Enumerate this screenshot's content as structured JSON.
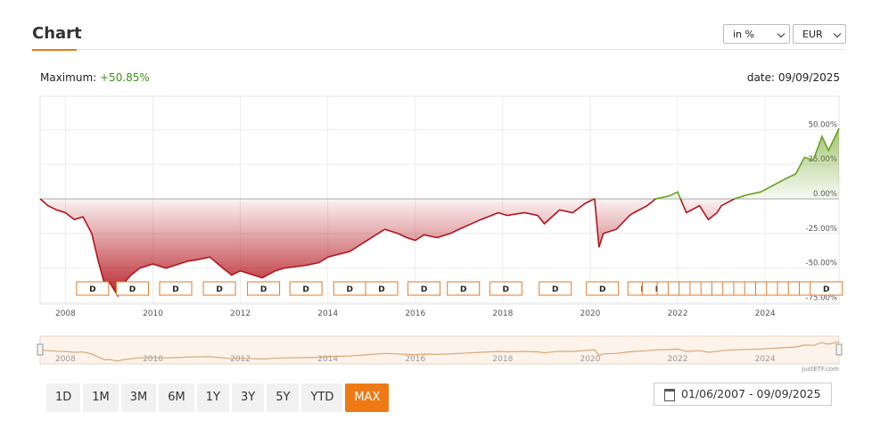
{
  "header": {
    "title": "Chart"
  },
  "controls": {
    "unit": "in %",
    "currency": "EUR"
  },
  "summary": {
    "maximum_label": "Maximum:",
    "maximum_value": "+50.85%",
    "date": "date: 09/09/2025"
  },
  "chart_data": {
    "type": "line",
    "x": [
      2007.42,
      2007.6,
      2007.8,
      2008.0,
      2008.2,
      2008.4,
      2008.6,
      2008.75,
      2008.9,
      2009.0,
      2009.2,
      2009.3,
      2009.5,
      2009.7,
      2010.0,
      2010.3,
      2010.5,
      2010.8,
      2011.0,
      2011.3,
      2011.6,
      2011.8,
      2012.0,
      2012.3,
      2012.5,
      2012.8,
      2013.0,
      2013.5,
      2013.8,
      2014.0,
      2014.5,
      2014.8,
      2015.0,
      2015.3,
      2015.6,
      2015.8,
      2016.0,
      2016.2,
      2016.5,
      2016.8,
      2017.0,
      2017.5,
      2017.9,
      2018.1,
      2018.5,
      2018.8,
      2018.95,
      2019.3,
      2019.6,
      2019.9,
      2020.1,
      2020.2,
      2020.3,
      2020.6,
      2020.9,
      2021.0,
      2021.3,
      2021.5,
      2021.8,
      2022.0,
      2022.2,
      2022.5,
      2022.7,
      2022.9,
      2023.0,
      2023.3,
      2023.6,
      2023.9,
      2024.2,
      2024.5,
      2024.7,
      2024.9,
      2025.1,
      2025.3,
      2025.45,
      2025.69
    ],
    "values": [
      0,
      -5,
      -8,
      -10,
      -15,
      -13,
      -25,
      -45,
      -62,
      -60,
      -70,
      -62,
      -55,
      -50,
      -47,
      -50,
      -48,
      -45,
      -44,
      -42,
      -50,
      -55,
      -52,
      -55,
      -57,
      -52,
      -50,
      -48,
      -46,
      -42,
      -38,
      -32,
      -28,
      -22,
      -25,
      -28,
      -30,
      -26,
      -28,
      -25,
      -22,
      -15,
      -10,
      -12,
      -10,
      -12,
      -18,
      -8,
      -10,
      -3,
      0,
      -35,
      -25,
      -22,
      -12,
      -10,
      -5,
      0,
      2,
      5,
      -10,
      -5,
      -15,
      -10,
      -5,
      0,
      3,
      5,
      10,
      15,
      18,
      30,
      28,
      45,
      35,
      50.85
    ],
    "color_up": "#6aa121",
    "color_down": "#b3141c",
    "xlim": [
      2007.42,
      2025.69
    ],
    "xticks": [
      2008,
      2010,
      2012,
      2014,
      2016,
      2018,
      2020,
      2022,
      2024
    ],
    "ylim": [
      -76,
      74
    ],
    "yticks": [
      {
        "value": 50,
        "label": "50.00%"
      },
      {
        "value": 25,
        "label": "25.00%"
      },
      {
        "value": 0,
        "label": "0.00%"
      },
      {
        "value": -25,
        "label": "-25.00%"
      },
      {
        "value": -50,
        "label": "-50.00%"
      },
      {
        "value": -75,
        "label": "-75.00%"
      }
    ],
    "grid": true,
    "dividend_label": "D",
    "dividend_x": [
      2008.62,
      2009.53,
      2010.52,
      2011.52,
      2012.53,
      2013.5,
      2014.5,
      2015.23,
      2016.2,
      2017.1,
      2018.07,
      2019.2,
      2020.28,
      2021.23,
      2021.56,
      2021.9,
      2022.15,
      2022.4,
      2022.65,
      2022.9,
      2023.15,
      2023.4,
      2023.65,
      2023.9,
      2024.15,
      2024.4,
      2024.65,
      2024.9,
      2025.15,
      2025.4
    ]
  },
  "periods": [
    "1D",
    "1M",
    "3M",
    "6M",
    "1Y",
    "3Y",
    "5Y",
    "YTD",
    "MAX"
  ],
  "active_period": 8,
  "date_range": "01/06/2007 - 09/09/2025",
  "credit": "justETF.com"
}
